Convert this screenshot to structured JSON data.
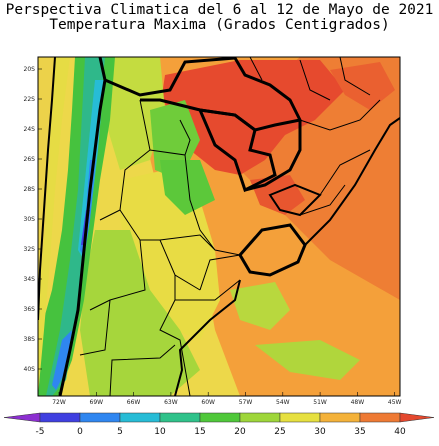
{
  "title_line1": "Perspectiva Climatica del 6 al 12 de Mayo de 2021",
  "title_line2": "Temperatura Maxima (Grados Centigrados)",
  "lat_ticks": [
    "20S",
    "22S",
    "24S",
    "26S",
    "28S",
    "30S",
    "32S",
    "34S",
    "36S",
    "38S",
    "40S"
  ],
  "lon_ticks": [
    "72W",
    "69W",
    "66W",
    "63W",
    "60W",
    "57W",
    "54W",
    "51W",
    "48W",
    "45W"
  ],
  "colorbar": {
    "labels": [
      "-5",
      "0",
      "5",
      "10",
      "15",
      "20",
      "25",
      "30",
      "35",
      "40"
    ],
    "colors": [
      "#8c2fd0",
      "#3f3fe0",
      "#2f86f0",
      "#27bcd6",
      "#2fc28a",
      "#4fc83a",
      "#9ed63a",
      "#e6e040",
      "#f4b23a",
      "#ee7a34",
      "#e4482e"
    ]
  }
}
